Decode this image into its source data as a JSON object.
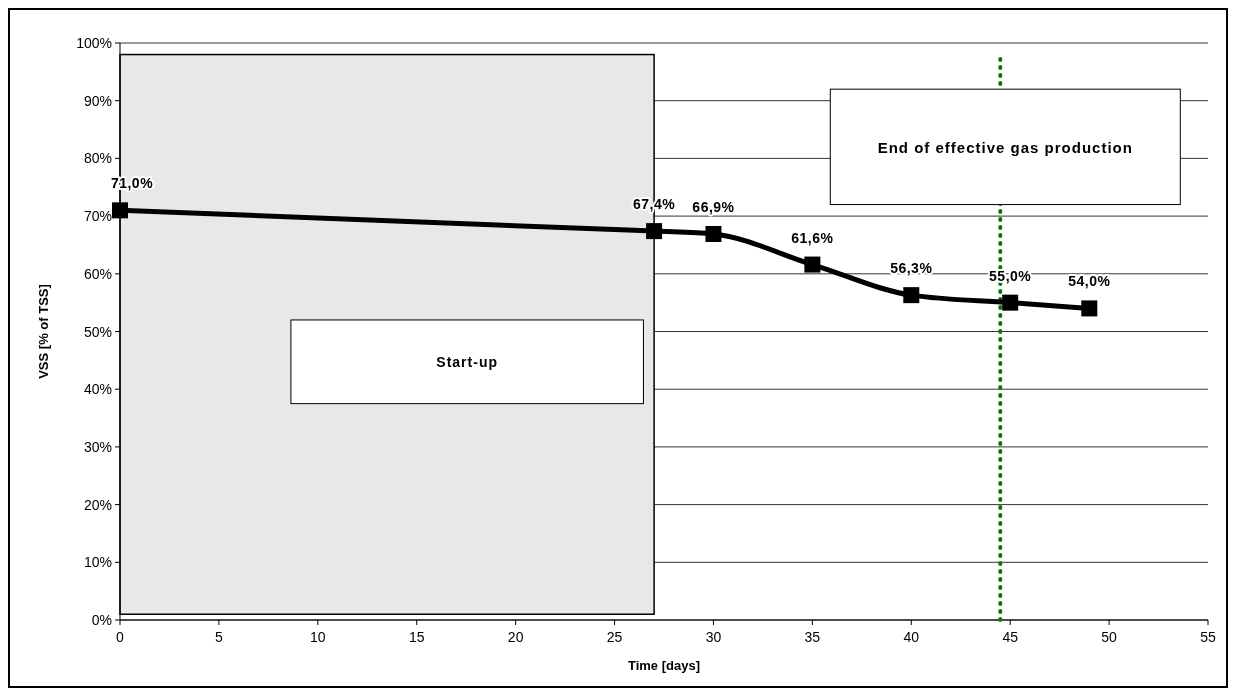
{
  "chart_data": {
    "type": "line",
    "xlabel": "Time [days]",
    "ylabel": "VSS [% of TSS]",
    "x": [
      0,
      27,
      30,
      35,
      40,
      45,
      49
    ],
    "series": [
      {
        "color": "#000000",
        "values": [
          71.0,
          67.4,
          66.9,
          61.6,
          56.3,
          55.0,
          54.0
        ],
        "value_labels": [
          "71,0%",
          "67,4%",
          "66,9%",
          "61,6%",
          "56,3%",
          "55,0%",
          "54,0%"
        ]
      }
    ],
    "xlim": [
      0,
      55
    ],
    "xticks": [
      0,
      5,
      10,
      15,
      20,
      25,
      30,
      35,
      40,
      45,
      50,
      55
    ],
    "ylim": [
      0,
      100
    ],
    "yticks": [
      {
        "value": 0,
        "label": "0%"
      },
      {
        "value": 10,
        "label": "10%"
      },
      {
        "value": 20,
        "label": "20%"
      },
      {
        "value": 30,
        "label": "30%"
      },
      {
        "value": 40,
        "label": "40%"
      },
      {
        "value": 50,
        "label": "50%"
      },
      {
        "value": 60,
        "label": "60%"
      },
      {
        "value": 70,
        "label": "70%"
      },
      {
        "value": 80,
        "label": "80%"
      },
      {
        "value": 90,
        "label": "90%"
      },
      {
        "value": 100,
        "label": "100%"
      }
    ],
    "grid": "y",
    "marker": "square",
    "line_style": "solid",
    "bands": [
      {
        "axis": "x",
        "from": 0,
        "to": 27,
        "label": "Start-up",
        "color": "#e8e8e8"
      }
    ],
    "ref_lines": [
      {
        "axis": "x",
        "value": 44.5,
        "label": "End of effective gas production",
        "color": "#008000",
        "line_style": "dotted"
      }
    ]
  }
}
